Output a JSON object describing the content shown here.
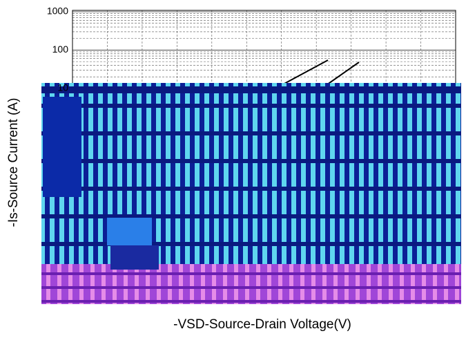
{
  "chart_data": {
    "type": "line",
    "log_y": true,
    "ylim": [
      0.0001,
      1000
    ],
    "yticks": [
      1000,
      100,
      10
    ],
    "y_label": "-Is-Source Current (A)",
    "x_label": "-VSD-Source-Drain Voltage(V)",
    "grid": true
  }
}
